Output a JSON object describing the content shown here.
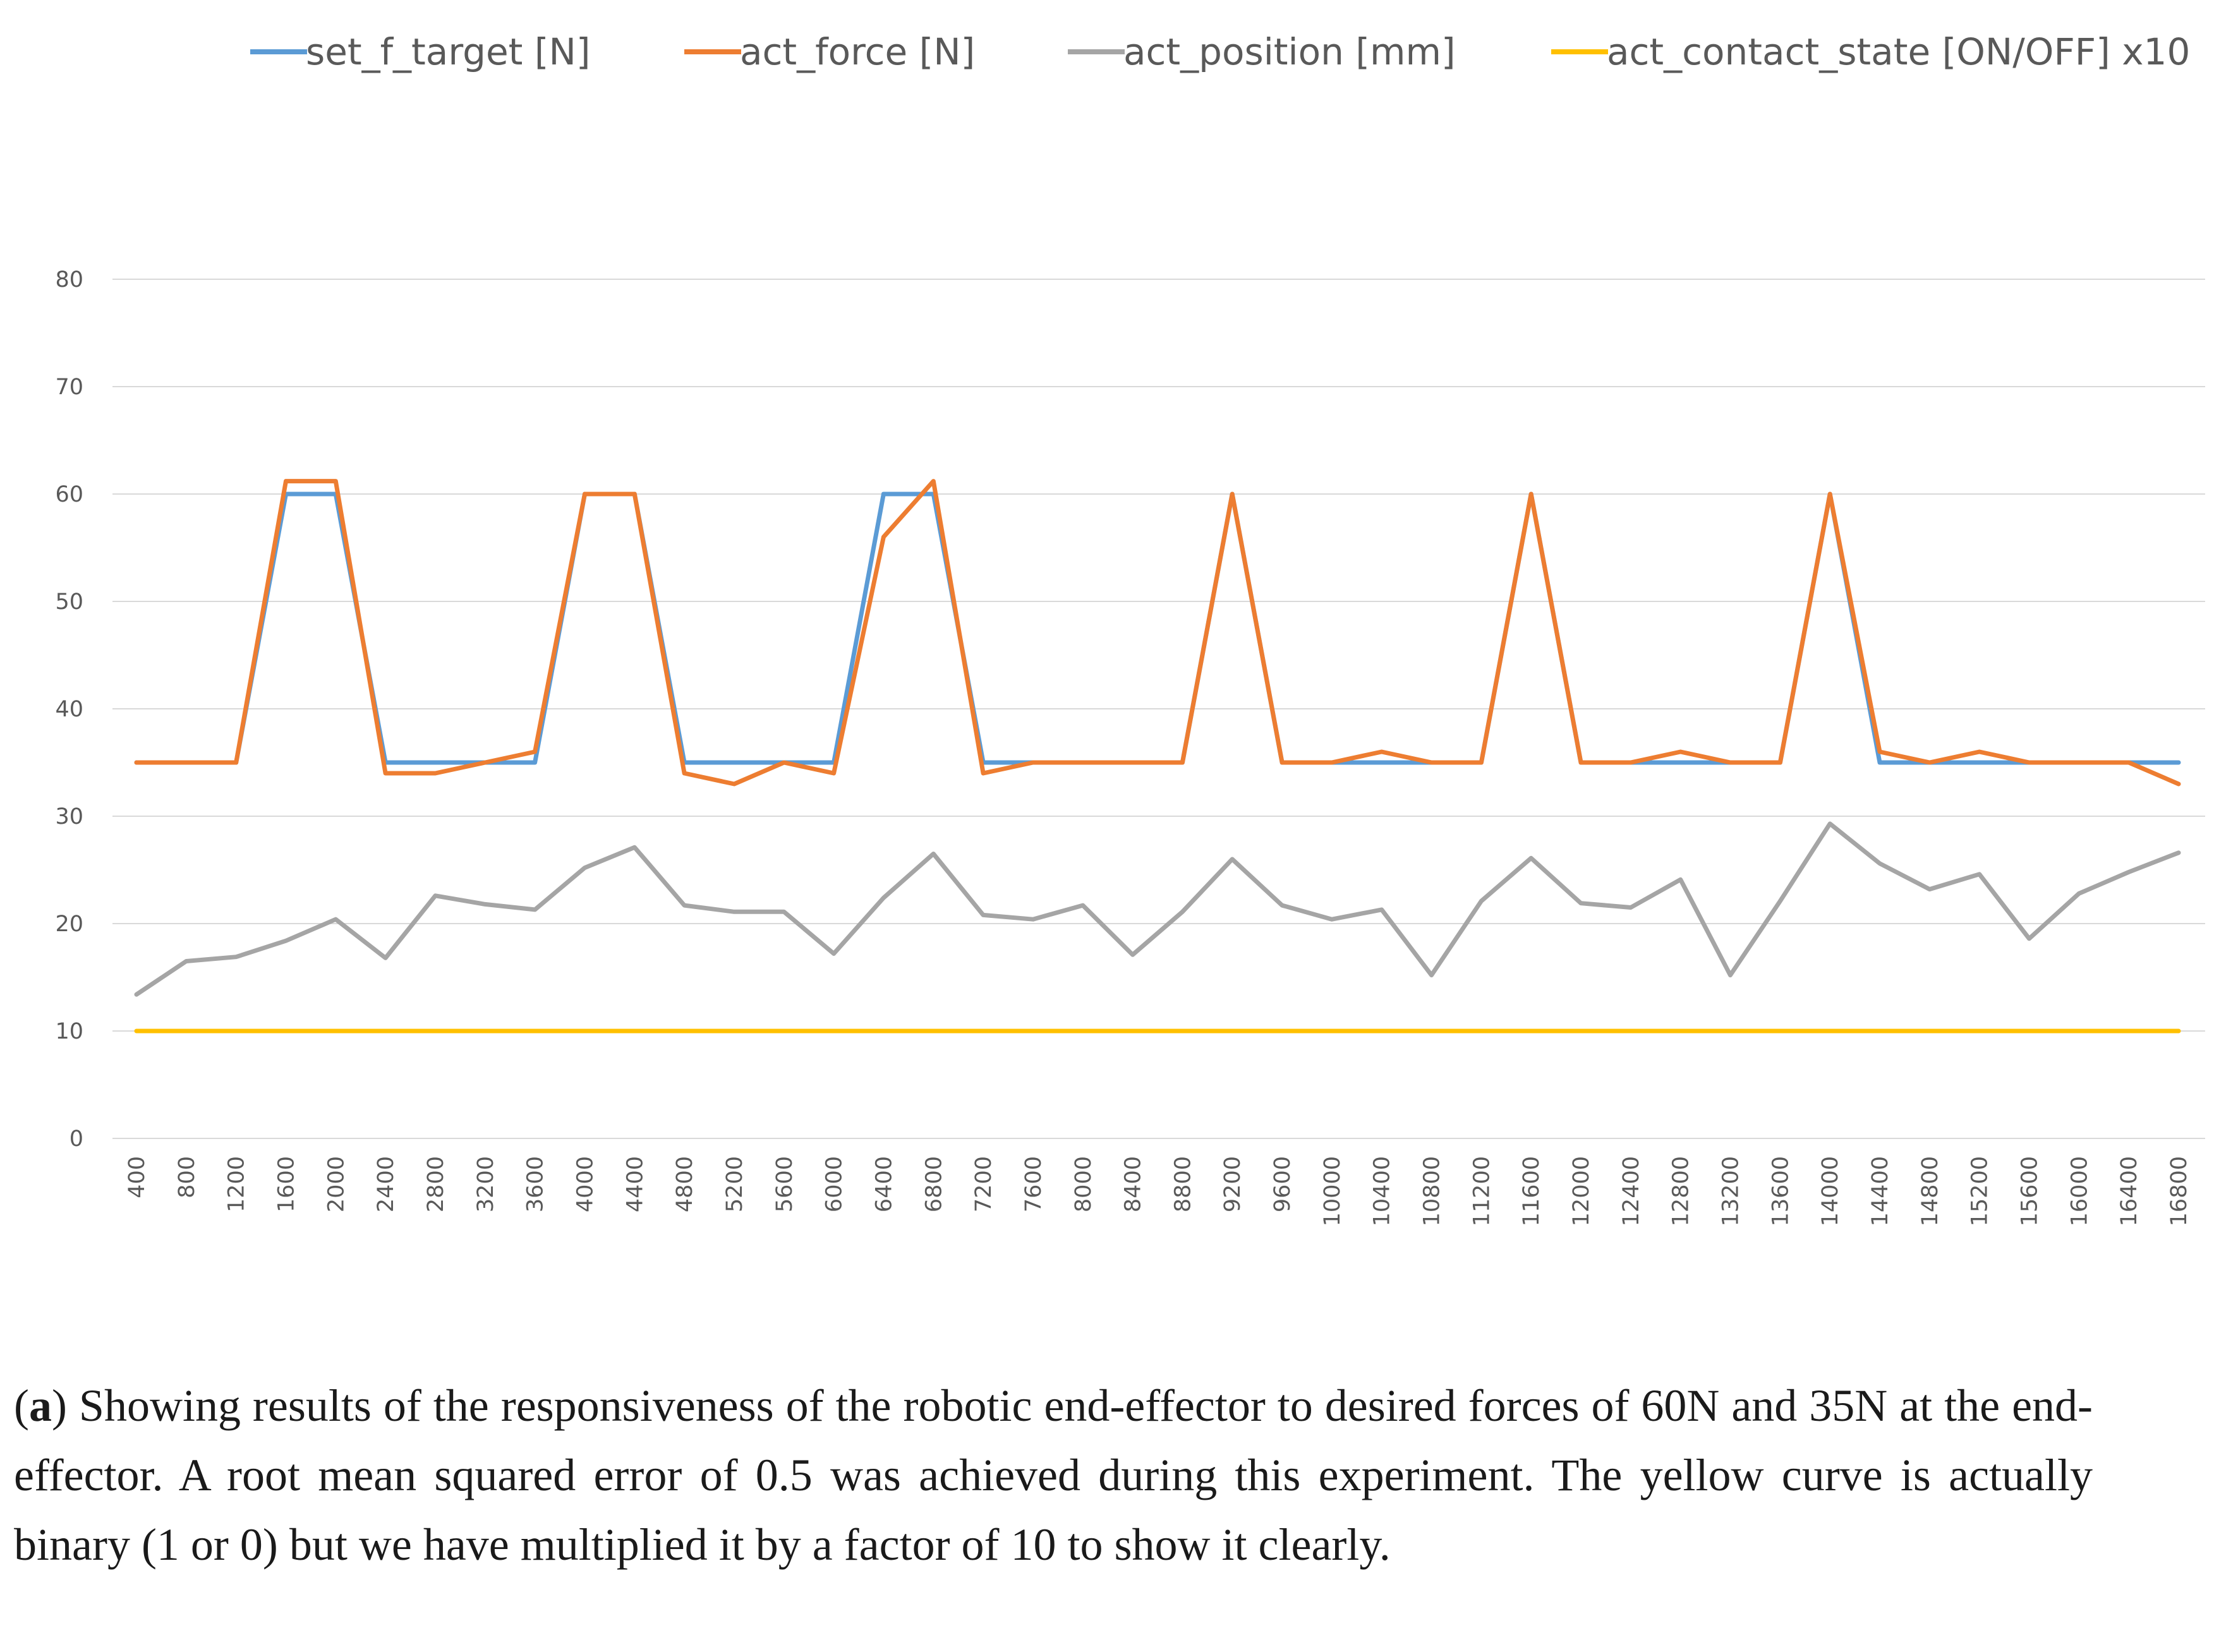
{
  "chart_data": {
    "type": "line",
    "title": "",
    "xlabel": "",
    "ylabel": "",
    "ylim": [
      0,
      80
    ],
    "yticks": [
      0,
      10,
      20,
      30,
      40,
      50,
      60,
      70,
      80
    ],
    "grid": true,
    "legend_position": "top",
    "categories": [
      "400",
      "800",
      "1200",
      "1600",
      "2000",
      "2400",
      "2800",
      "3200",
      "3600",
      "4000",
      "4400",
      "4800",
      "5200",
      "5600",
      "6000",
      "6400",
      "6800",
      "7200",
      "7600",
      "8000",
      "8400",
      "8800",
      "9200",
      "9600",
      "10000",
      "10400",
      "10800",
      "11200",
      "11600",
      "12000",
      "12400",
      "12800",
      "13200",
      "13600",
      "14000",
      "14400",
      "14800",
      "15200",
      "15600",
      "16000",
      "16400",
      "16800"
    ],
    "series": [
      {
        "name": "set_f_target [N]",
        "color": "#5B9BD5",
        "values": [
          35,
          35,
          35,
          60,
          60,
          35,
          35,
          35,
          35,
          60,
          60,
          35,
          35,
          35,
          35,
          60,
          60,
          35,
          35,
          35,
          35,
          35,
          60,
          35,
          35,
          35,
          35,
          35,
          60,
          35,
          35,
          35,
          35,
          35,
          60,
          35,
          35,
          35,
          35,
          35,
          35,
          35
        ]
      },
      {
        "name": "act_force [N]",
        "color": "#ED7D31",
        "values": [
          35,
          35,
          35,
          61.2,
          61.2,
          34,
          34,
          35,
          36,
          60,
          60,
          34,
          33,
          35,
          34,
          56,
          61.2,
          34,
          35,
          35,
          35,
          35,
          60,
          35,
          35,
          36,
          35,
          35,
          60,
          35,
          35,
          36,
          35,
          35,
          60,
          36,
          35,
          36,
          35,
          35,
          35,
          33
        ]
      },
      {
        "name": "act_position [mm]",
        "color": "#A5A5A5",
        "values": [
          13.4,
          16.5,
          16.9,
          18.4,
          20.4,
          16.8,
          22.6,
          21.8,
          21.3,
          25.2,
          27.1,
          21.7,
          21.1,
          21.1,
          17.2,
          22.4,
          26.5,
          20.8,
          20.4,
          21.7,
          17.1,
          21.1,
          26,
          21.7,
          20.4,
          21.3,
          15.2,
          22.1,
          26.1,
          21.9,
          21.5,
          24.1,
          15.2,
          22.1,
          29.3,
          25.6,
          23.2,
          24.6,
          18.6,
          22.8,
          24.8,
          26.6
        ]
      },
      {
        "name": "act_contact_state  [ON/OFF] x10",
        "color": "#FFC000",
        "values": [
          10,
          10,
          10,
          10,
          10,
          10,
          10,
          10,
          10,
          10,
          10,
          10,
          10,
          10,
          10,
          10,
          10,
          10,
          10,
          10,
          10,
          10,
          10,
          10,
          10,
          10,
          10,
          10,
          10,
          10,
          10,
          10,
          10,
          10,
          10,
          10,
          10,
          10,
          10,
          10,
          10,
          10
        ]
      }
    ]
  },
  "caption": {
    "label": "a",
    "open_paren": "(",
    "close_paren": ")",
    "text": " Showing results of the responsiveness of the robotic end-effector to desired forces of 60N and 35N at the end-effector. A root mean squared error of 0.5 was achieved during this experiment. The yellow curve is actually binary (1 or 0) but we have multiplied it by a factor of 10 to show it clearly."
  }
}
